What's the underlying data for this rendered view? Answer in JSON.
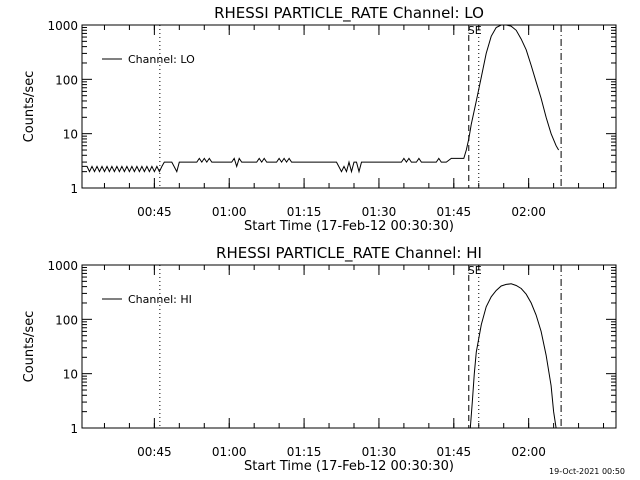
{
  "footer": {
    "timestamp": "19-Oct-2021 00:50"
  },
  "chart_data": [
    {
      "type": "line",
      "title": "RHESSI PARTICLE_RATE Channel: LO",
      "xlabel": "Start Time (17-Feb-12 00:30:30)",
      "ylabel": "Counts/sec",
      "y_scale": "log",
      "ylim": [
        1,
        1000
      ],
      "y_ticks": [
        1,
        10,
        100,
        1000
      ],
      "y_tick_labels": [
        "1",
        "10",
        "100",
        "1000"
      ],
      "x_unit": "minutes after 00:30:30",
      "xlim": [
        0,
        107
      ],
      "x_ticks": [
        14.5,
        29.5,
        44.5,
        59.5,
        74.5,
        89.5
      ],
      "x_tick_labels": [
        "00:45",
        "01:00",
        "01:15",
        "01:30",
        "01:45",
        "02:00"
      ],
      "legend": {
        "label": "Channel: LO",
        "position": "top-left"
      },
      "annotations": [
        {
          "type": "dotted",
          "x": 15.6
        },
        {
          "type": "dashed",
          "x": 77.5
        },
        {
          "type": "dotted",
          "x": 79.5,
          "label": "SE"
        },
        {
          "type": "dash-dot",
          "x": 96.0
        }
      ],
      "series": [
        {
          "name": "Channel: LO",
          "x": [
            0,
            1,
            1.5,
            2,
            2.5,
            3,
            3.5,
            4,
            4.5,
            5,
            5.5,
            6,
            6.5,
            7,
            7.5,
            8,
            8.5,
            9,
            9.5,
            10,
            10.5,
            11,
            11.5,
            12,
            12.5,
            13,
            13.5,
            14,
            14.5,
            15,
            15.5,
            16,
            16.5,
            18,
            19,
            19.5,
            20,
            21,
            23,
            23.5,
            24,
            24.5,
            25,
            25.5,
            26,
            27,
            28,
            29,
            30,
            30.5,
            31,
            31.5,
            32,
            33,
            35,
            35.5,
            36,
            36.5,
            37,
            38,
            39,
            39.5,
            40,
            40.5,
            41,
            41.5,
            42,
            43,
            45,
            46,
            50,
            51,
            52,
            52.5,
            53,
            53.5,
            54,
            54.5,
            55,
            55.5,
            56,
            57,
            58,
            59,
            60,
            61,
            62,
            63,
            64,
            64.5,
            65,
            65.5,
            66,
            67,
            67.5,
            68,
            69,
            70,
            71,
            71.5,
            72,
            73,
            74,
            75,
            76,
            76.5,
            77,
            77.5,
            78,
            79,
            80,
            81,
            82,
            83,
            84,
            85,
            86,
            87,
            88,
            89,
            90,
            91,
            92,
            93,
            94,
            95,
            95.5
          ],
          "values": [
            2.5,
            2.5,
            2.0,
            2.5,
            2.0,
            2.5,
            2.0,
            2.5,
            2.0,
            2.5,
            2.0,
            2.5,
            2.0,
            2.5,
            2.0,
            2.5,
            2.0,
            2.5,
            2.0,
            2.5,
            2.0,
            2.5,
            2.0,
            2.5,
            2.0,
            2.5,
            2.0,
            2.5,
            2.0,
            2.5,
            2.0,
            2.5,
            3.0,
            3.0,
            2.0,
            3.0,
            3.0,
            3.0,
            3.0,
            3.5,
            3.0,
            3.5,
            3.0,
            3.5,
            3.0,
            3.0,
            3.0,
            3.0,
            3.0,
            3.5,
            2.5,
            3.5,
            3.0,
            3.0,
            3.0,
            3.5,
            3.0,
            3.5,
            3.0,
            3.0,
            3.0,
            3.5,
            3.0,
            3.5,
            3.0,
            3.5,
            3.0,
            3.0,
            3.0,
            3.0,
            3.0,
            3.0,
            2.0,
            2.5,
            2.0,
            3.0,
            2.0,
            3.0,
            3.0,
            2.0,
            3.0,
            3.0,
            3.0,
            3.0,
            3.0,
            3.0,
            3.0,
            3.0,
            3.0,
            3.5,
            3.0,
            3.5,
            3.0,
            3.0,
            3.5,
            3.0,
            3.0,
            3.0,
            3.0,
            3.5,
            3.0,
            3.0,
            3.5,
            3.5,
            3.5,
            3.5,
            5.0,
            8.0,
            15,
            40,
            110,
            300,
            620,
            900,
            1000,
            1000,
            950,
            800,
            550,
            350,
            180,
            90,
            45,
            20,
            10,
            6,
            5
          ]
        }
      ]
    },
    {
      "type": "line",
      "title": "RHESSI PARTICLE_RATE Channel: HI",
      "xlabel": "Start Time (17-Feb-12 00:30:30)",
      "ylabel": "Counts/sec",
      "y_scale": "log",
      "ylim": [
        1,
        1000
      ],
      "y_ticks": [
        1,
        10,
        100,
        1000
      ],
      "y_tick_labels": [
        "1",
        "10",
        "100",
        "1000"
      ],
      "x_unit": "minutes after 00:30:30",
      "xlim": [
        0,
        107
      ],
      "x_ticks": [
        14.5,
        29.5,
        44.5,
        59.5,
        74.5,
        89.5
      ],
      "x_tick_labels": [
        "00:45",
        "01:00",
        "01:15",
        "01:30",
        "01:45",
        "02:00"
      ],
      "legend": {
        "label": "Channel: HI",
        "position": "top-left"
      },
      "annotations": [
        {
          "type": "dotted",
          "x": 15.6
        },
        {
          "type": "dashed",
          "x": 77.5
        },
        {
          "type": "dotted",
          "x": 79.5,
          "label": "SE"
        },
        {
          "type": "dash-dot",
          "x": 96.0
        }
      ],
      "series": [
        {
          "name": "Channel: HI",
          "x": [
            77.8,
            78.2,
            78.6,
            79,
            80,
            81,
            82,
            83,
            84,
            85,
            86,
            87,
            88,
            89,
            90,
            91,
            92,
            93,
            94,
            94.5,
            95
          ],
          "values": [
            1,
            3,
            10,
            25,
            80,
            170,
            260,
            340,
            410,
            440,
            450,
            420,
            370,
            290,
            200,
            120,
            60,
            22,
            6,
            2,
            1
          ]
        }
      ]
    }
  ]
}
